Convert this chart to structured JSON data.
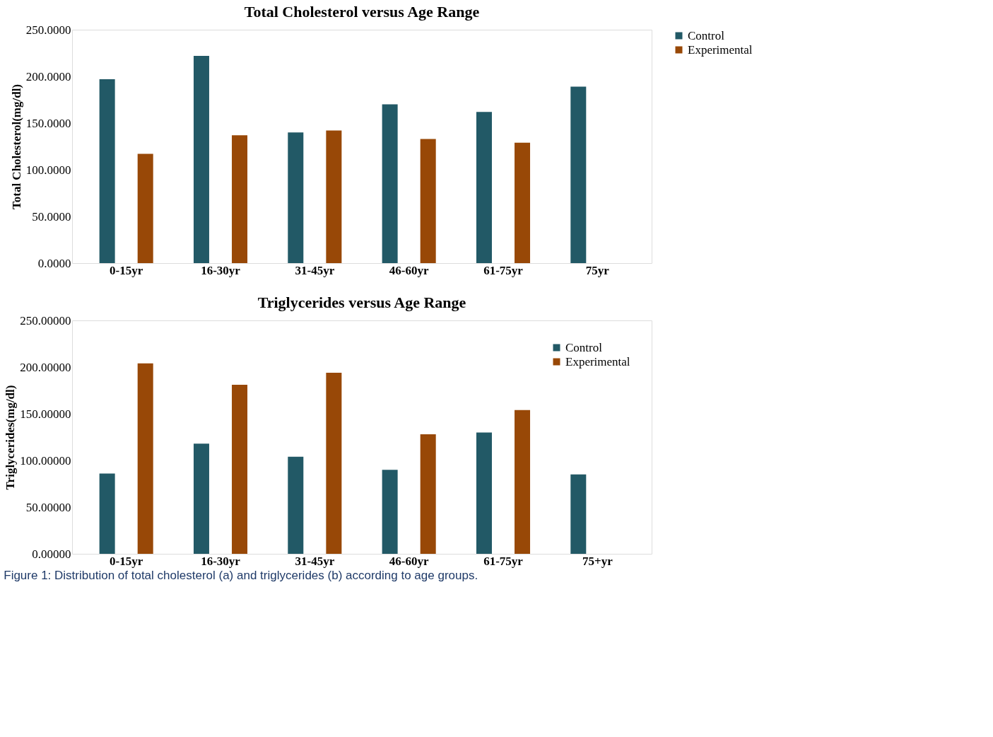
{
  "chart_data": [
    {
      "type": "bar",
      "title": "Total Cholesterol versus Age Range",
      "ylabel": "Total Cholesterol(mg/dl)",
      "categories": [
        "0-15yr",
        "16-30yr",
        "31-45yr",
        "46-60yr",
        "61-75yr",
        "75yr"
      ],
      "series": [
        {
          "name": "Control",
          "color": "#225966",
          "values": [
            197,
            222,
            140,
            170,
            162,
            189
          ]
        },
        {
          "name": "Experimental",
          "color": "#984807",
          "values": [
            117,
            137,
            142,
            133,
            129,
            null
          ]
        }
      ],
      "ylim": [
        0,
        250
      ],
      "yticks": [
        {
          "value": 0,
          "label": "0.0000"
        },
        {
          "value": 50,
          "label": "50.0000"
        },
        {
          "value": 100,
          "label": "100.0000"
        },
        {
          "value": 150,
          "label": "150.0000"
        },
        {
          "value": 200,
          "label": "200.0000"
        },
        {
          "value": 250,
          "label": "250.0000"
        }
      ],
      "grid": false,
      "legend": "right"
    },
    {
      "type": "bar",
      "title": "Triglycerides versus Age Range",
      "ylabel": "Triglycerides(mg/dl)",
      "categories": [
        "0-15yr",
        "16-30yr",
        "31-45yr",
        "46-60yr",
        "61-75yr",
        "75+yr"
      ],
      "series": [
        {
          "name": "Control",
          "color": "#225966",
          "values": [
            86,
            118,
            104,
            90,
            130,
            85
          ]
        },
        {
          "name": "Experimental",
          "color": "#984807",
          "values": [
            204,
            181,
            194,
            128,
            154,
            null
          ]
        }
      ],
      "ylim": [
        0,
        250
      ],
      "yticks": [
        {
          "value": 0,
          "label": "0.00000"
        },
        {
          "value": 50,
          "label": "50.00000"
        },
        {
          "value": 100,
          "label": "100.00000"
        },
        {
          "value": 150,
          "label": "150.00000"
        },
        {
          "value": 200,
          "label": "200.00000"
        },
        {
          "value": 250,
          "label": "250.00000"
        }
      ],
      "grid": false,
      "legend": "top right",
      "annotations": [
        "Figure 1: Distribution of total cholesterol (a) and triglycerides (b) according to age groups."
      ]
    }
  ]
}
